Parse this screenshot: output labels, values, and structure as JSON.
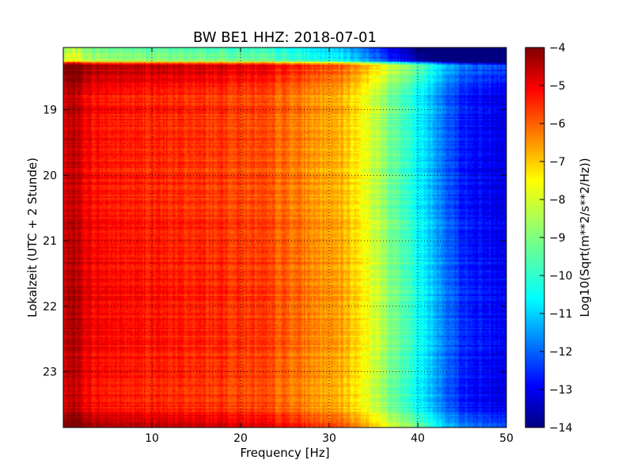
{
  "chart_data": {
    "type": "heatmap",
    "title": "BW BE1 HHZ: 2018-07-01",
    "xlabel": "Frequency [Hz]",
    "ylabel": "Lokalzeit (UTC + 2 Stunde)",
    "xlim": [
      0,
      50
    ],
    "ylim": [
      23.85,
      18.05
    ],
    "x_ticks": [
      10,
      20,
      30,
      40,
      50
    ],
    "x_tick_labels": [
      "10",
      "20",
      "30",
      "40",
      "50"
    ],
    "y_ticks": [
      19,
      20,
      21,
      22,
      23
    ],
    "y_tick_labels": [
      "19",
      "20",
      "21",
      "22",
      "23"
    ],
    "grid": true,
    "colormap": "jet",
    "colorbar": {
      "label": "Log10(Sqrt(m**2/s**2/Hz))",
      "range": [
        -14,
        -4
      ],
      "ticks": [
        -4,
        -5,
        -6,
        -7,
        -8,
        -9,
        -10,
        -11,
        -12,
        -13,
        -14
      ],
      "tick_labels": [
        "−4",
        "−5",
        "−6",
        "−7",
        "−8",
        "−9",
        "−10",
        "−11",
        "−12",
        "−13",
        "−14"
      ]
    },
    "base_spectrum": {
      "frequency_hz": [
        0,
        0.5,
        1,
        3,
        6,
        10,
        14,
        18,
        22,
        26,
        28,
        30,
        32,
        34,
        36,
        38,
        40,
        42,
        44,
        46,
        50
      ],
      "log10_amplitude": [
        -5.4,
        -5.1,
        -4.8,
        -5.6,
        -5.8,
        -5.9,
        -6.0,
        -6.1,
        -6.3,
        -6.7,
        -7.0,
        -7.2,
        -7.5,
        -8.1,
        -9.0,
        -9.8,
        -10.6,
        -11.4,
        -12.4,
        -13.0,
        -13.2
      ]
    },
    "time_offsets": [
      {
        "time": 18.05,
        "offset": -3.5
      },
      {
        "time": 18.25,
        "offset": -3.0
      },
      {
        "time": 18.31,
        "offset": 1.2
      },
      {
        "time": 18.8,
        "offset": 0.3
      },
      {
        "time": 20.6,
        "offset": 0.3
      },
      {
        "time": 21.0,
        "offset": 0.4
      },
      {
        "time": 22.1,
        "offset": 0.5
      },
      {
        "time": 23.55,
        "offset": 0.3
      },
      {
        "time": 23.85,
        "offset": 1.5
      }
    ]
  }
}
